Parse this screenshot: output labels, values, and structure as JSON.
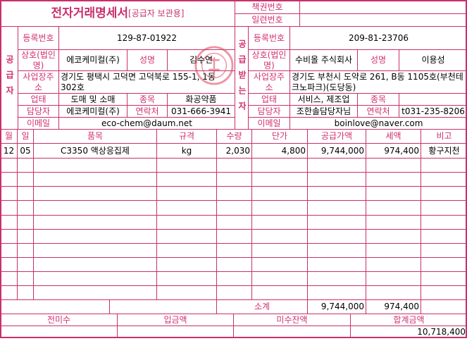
{
  "title": {
    "main": "전자거래명세서",
    "sub": "[공급자 보관용]"
  },
  "book": {
    "book_no_label": "책권번호",
    "serial_no_label": "일련번호"
  },
  "labels": {
    "supplier": "공급자",
    "receiver": "공급받는자",
    "reg_no": "등록번호",
    "company": "상호(법인명)",
    "ceo": "성명",
    "address": "사업장주소",
    "biz_type": "업태",
    "biz_item": "종목",
    "contact_person": "담당자",
    "phone": "연락처",
    "email": "이메일"
  },
  "supplier": {
    "reg_no": "129-87-01922",
    "company": "에코케미컬(주)",
    "ceo": "김수연",
    "address": "경기도 평택시 고덕면 고덕북로 155-1, 1동 302호",
    "biz_type": "도매 및 소매",
    "biz_item": "화공약품",
    "contact_person": "에코케미컬(주)",
    "phone": "031-666-3941",
    "email": "eco-chem@daum.net"
  },
  "receiver": {
    "reg_no": "209-81-23706",
    "company": "수비올 주식회사",
    "ceo": "이용성",
    "address": "경기도 부천시 도약로 261, B동 1105호(부천테크노파크)(도당동)",
    "biz_type": "서비스, 제조업",
    "biz_item": "",
    "contact_person": "조한솔담당자님",
    "phone": "t031-235-8206",
    "email": "boinlove@naver.com"
  },
  "items": {
    "headers": [
      "월",
      "일",
      "품목",
      "규격",
      "수량",
      "단가",
      "공급가액",
      "세액",
      "비고"
    ],
    "rows": [
      [
        "12",
        "05",
        "C3350 액상응집제",
        "kg",
        "2,030",
        "4,800",
        "9,744,000",
        "974,400",
        "황구지천"
      ]
    ]
  },
  "subtotal": {
    "label": "소계",
    "supply": "9,744,000",
    "tax": "974,400"
  },
  "summary": {
    "headers": [
      "전미수",
      "입금액",
      "미수잔액",
      "합계금액"
    ],
    "values": [
      "",
      "",
      "",
      "10,718,400"
    ]
  },
  "colors": {
    "accent": "#c8306a"
  }
}
